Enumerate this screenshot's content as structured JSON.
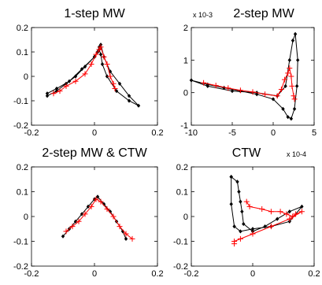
{
  "figure": {
    "black_series_color": "#000000",
    "red_series_color": "#ff0000"
  },
  "chart_data": [
    {
      "type": "line",
      "title": "1-step MW",
      "xlim": [
        -0.2,
        0.2
      ],
      "ylim": [
        -0.2,
        0.2
      ],
      "xticks": [
        "-0.2",
        "0",
        "0.2"
      ],
      "yticks": [
        "-0.2",
        "-0.1",
        "0",
        "0.1",
        "0.2"
      ],
      "exponent_label": "",
      "series": [
        {
          "color": "#000000",
          "marker": "diamond",
          "x": [
            -0.15,
            -0.12,
            -0.09,
            -0.06,
            -0.03,
            0.0,
            0.01,
            0.015,
            0.02,
            0.03,
            0.05,
            0.08,
            0.11,
            0.14,
            0.11,
            0.07,
            0.04,
            0.025,
            0.02,
            0.015,
            0.0,
            -0.04,
            -0.08,
            -0.12,
            -0.15
          ],
          "y": [
            -0.08,
            -0.06,
            -0.03,
            0.0,
            0.04,
            0.08,
            0.1,
            0.12,
            0.13,
            0.08,
            0.02,
            -0.03,
            -0.08,
            -0.12,
            -0.1,
            -0.06,
            0.0,
            0.05,
            0.09,
            0.11,
            0.08,
            0.03,
            -0.02,
            -0.05,
            -0.07
          ]
        },
        {
          "color": "#ff0000",
          "marker": "plus",
          "x": [
            -0.13,
            -0.11,
            -0.09,
            -0.06,
            -0.03,
            -0.01,
            0.005,
            0.015,
            0.02,
            0.03,
            0.04,
            0.05,
            0.06,
            0.065
          ],
          "y": [
            -0.07,
            -0.06,
            -0.04,
            -0.02,
            0.01,
            0.05,
            0.09,
            0.11,
            0.12,
            0.08,
            0.05,
            0.0,
            -0.03,
            -0.05
          ]
        }
      ]
    },
    {
      "type": "line",
      "title": "2-step MW",
      "xlim": [
        -10,
        5
      ],
      "ylim": [
        -1,
        2
      ],
      "xticks": [
        "-10",
        "-5",
        "0",
        "5"
      ],
      "yticks": [
        "-1",
        "0",
        "1",
        "2"
      ],
      "exponent_label": "x 10-3",
      "series": [
        {
          "color": "#000000",
          "marker": "diamond",
          "x": [
            -10,
            -8,
            -6,
            -4,
            -2,
            0,
            1.2,
            1.8,
            2.2,
            2.6,
            2.9,
            3.0,
            2.7,
            2.4,
            2.0,
            1.5,
            0.5,
            -2,
            -5,
            -8,
            -10
          ],
          "y": [
            0.38,
            0.25,
            0.15,
            0.05,
            -0.05,
            -0.2,
            -0.5,
            -0.75,
            -0.8,
            -0.5,
            0.2,
            1.0,
            1.8,
            1.6,
            1.0,
            0.2,
            -0.1,
            0.0,
            0.05,
            0.2,
            0.38
          ]
        },
        {
          "color": "#ff0000",
          "marker": "plus",
          "x": [
            -8.5,
            -7,
            -5.5,
            -4,
            -2.5,
            -1,
            0.5,
            1.0,
            1.4,
            1.8,
            2.0,
            2.2,
            2.3,
            2.5,
            2.6
          ],
          "y": [
            0.3,
            0.22,
            0.14,
            0.07,
            0.02,
            -0.05,
            -0.1,
            0.1,
            0.4,
            0.6,
            0.75,
            0.5,
            0.2,
            -0.1,
            -0.2
          ]
        }
      ]
    },
    {
      "type": "line",
      "title": "2-step MW & CTW",
      "xlim": [
        -0.2,
        0.2
      ],
      "ylim": [
        -0.2,
        0.2
      ],
      "xticks": [
        "-0.2",
        "0",
        "0.2"
      ],
      "yticks": [
        "-0.2",
        "-0.1",
        "0",
        "0.1",
        "0.2"
      ],
      "exponent_label": "",
      "series": [
        {
          "color": "#000000",
          "marker": "diamond",
          "x": [
            -0.1,
            -0.08,
            -0.06,
            -0.04,
            -0.02,
            0.0,
            0.01,
            0.03,
            0.05,
            0.07,
            0.09,
            0.1
          ],
          "y": [
            -0.08,
            -0.05,
            -0.02,
            0.01,
            0.04,
            0.07,
            0.08,
            0.05,
            0.02,
            -0.02,
            -0.06,
            -0.09
          ]
        },
        {
          "color": "#ff0000",
          "marker": "plus",
          "x": [
            -0.09,
            -0.07,
            -0.05,
            -0.03,
            -0.01,
            0.005,
            0.02,
            0.04,
            0.06,
            0.08,
            0.1,
            0.12
          ],
          "y": [
            -0.06,
            -0.04,
            -0.02,
            0.01,
            0.04,
            0.07,
            0.06,
            0.03,
            0.0,
            -0.04,
            -0.07,
            -0.09
          ]
        }
      ]
    },
    {
      "type": "line",
      "title": "CTW",
      "xlim": [
        -0.2,
        0.2
      ],
      "ylim": [
        -0.2,
        0.2
      ],
      "xticks": [
        "-0.2",
        "0",
        "0.2"
      ],
      "yticks": [
        "-0.2",
        "-0.1",
        "0",
        "0.1",
        "0.2"
      ],
      "exponent_label": "x 10-4",
      "series": [
        {
          "color": "#000000",
          "marker": "diamond",
          "x": [
            -0.07,
            -0.05,
            -0.045,
            -0.04,
            -0.035,
            -0.03,
            0.0,
            0.04,
            0.08,
            0.12,
            0.16,
            0.12,
            0.06,
            0.0,
            -0.04,
            -0.06,
            -0.07,
            -0.07
          ],
          "y": [
            0.16,
            0.14,
            0.1,
            0.06,
            0.02,
            -0.03,
            -0.06,
            -0.04,
            -0.01,
            0.02,
            0.04,
            -0.02,
            -0.04,
            -0.05,
            -0.06,
            -0.04,
            0.05,
            0.16
          ]
        },
        {
          "color": "#ff0000",
          "marker": "plus",
          "x": [
            -0.02,
            -0.01,
            0.03,
            0.06,
            0.09,
            0.11,
            0.13,
            0.14,
            0.16,
            0.12,
            0.06,
            0.0,
            -0.04,
            -0.06,
            -0.06
          ],
          "y": [
            0.06,
            0.04,
            0.03,
            0.02,
            0.02,
            0.01,
            0.0,
            0.01,
            0.02,
            -0.01,
            -0.04,
            -0.07,
            -0.09,
            -0.1,
            -0.11
          ]
        }
      ]
    }
  ]
}
